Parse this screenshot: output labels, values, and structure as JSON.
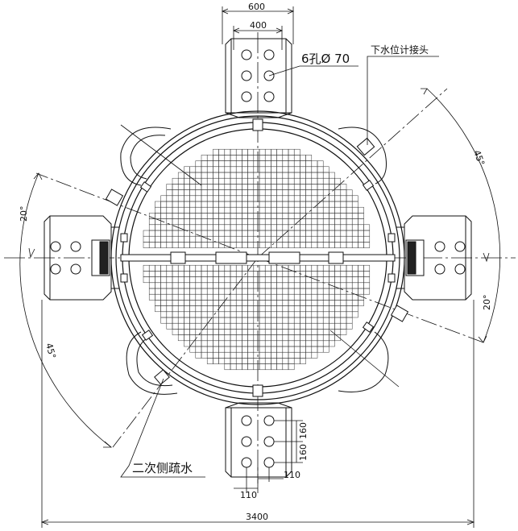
{
  "dimensions": {
    "top_width_outer": "600",
    "top_width_inner": "400",
    "bottom_spacing_vertical_1": "160",
    "bottom_spacing_vertical_2": "160",
    "bottom_offset_left": "110",
    "bottom_offset_right": "110",
    "overall_width": "3400",
    "angle_left": "20°",
    "angle_right": "20°",
    "angle_upper_right": "45°",
    "angle_lower_left": "45°"
  },
  "labels": {
    "holes": "6孔Ø 70",
    "water_level_connector": "下水位计接头",
    "secondary_side_drain": "二次侧疏水"
  },
  "colors": {
    "line": "#111111",
    "background": "#ffffff"
  }
}
